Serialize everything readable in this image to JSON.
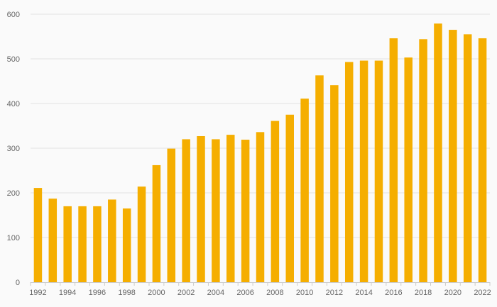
{
  "chart_data": {
    "type": "bar",
    "title": "",
    "xlabel": "",
    "ylabel": "",
    "categories": [
      1992,
      1993,
      1994,
      1995,
      1996,
      1997,
      1998,
      1999,
      2000,
      2001,
      2002,
      2003,
      2004,
      2005,
      2006,
      2007,
      2008,
      2009,
      2010,
      2011,
      2012,
      2013,
      2014,
      2015,
      2016,
      2017,
      2018,
      2019,
      2020,
      2021,
      2022
    ],
    "x_tick_labels": [
      "1992",
      "1994",
      "1996",
      "1998",
      "2000",
      "2002",
      "2004",
      "2006",
      "2008",
      "2010",
      "2012",
      "2014",
      "2016",
      "2018",
      "2020",
      "2022"
    ],
    "values": [
      211,
      187,
      170,
      170,
      170,
      185,
      165,
      214,
      262,
      299,
      320,
      327,
      320,
      330,
      319,
      336,
      361,
      375,
      411,
      463,
      441,
      493,
      496,
      496,
      546,
      503,
      544,
      579,
      565,
      555,
      546
    ],
    "ylim": [
      0,
      600
    ],
    "y_ticks": [
      0,
      100,
      200,
      300,
      400,
      500,
      600
    ],
    "grid": true,
    "legend": "none",
    "colors": {
      "bar": "#f5ae00",
      "grid": "#e3e3e3",
      "axis": "#cccccc",
      "text": "#666666",
      "background": "#fafafa"
    }
  }
}
